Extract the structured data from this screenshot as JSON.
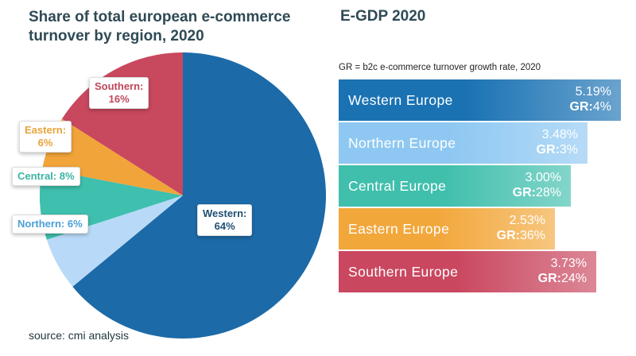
{
  "chart_data": [
    {
      "type": "pie",
      "title": "Share of total european e-commerce turnover by region, 2020",
      "unit": "%",
      "slices": [
        {
          "name": "Western",
          "value": 64,
          "label": "64%",
          "color": "#1c6aa8"
        },
        {
          "name": "Northern",
          "value": 6,
          "label": "6%",
          "color": "#b8daf8"
        },
        {
          "name": "Central",
          "value": 8,
          "label": "8%",
          "color": "#3fbfad"
        },
        {
          "name": "Eastern",
          "value": 6,
          "label": "6%",
          "color": "#f1a43a"
        },
        {
          "name": "Southern",
          "value": 16,
          "label": "16%",
          "color": "#c8485e"
        }
      ]
    },
    {
      "type": "bar",
      "title": "E-GDP 2020",
      "subtitle": "GR = b2c e-commerce turnover growth rate, 2020",
      "categories": [
        "Western Europe",
        "Northern Europe",
        "Central Europe",
        "Eastern Europe",
        "Southern Europe"
      ],
      "values": [
        5.19,
        3.48,
        3.0,
        2.53,
        3.73
      ],
      "value_labels": [
        "5.19%",
        "3.48%",
        "3.00%",
        "2.53%",
        "3.73%"
      ],
      "growth_rate_labels": [
        "4%",
        "3%",
        "28%",
        "36%",
        "24%"
      ],
      "gr_prefix": "GR:",
      "colors": [
        "#1a72b3",
        "#8ec8f2",
        "#40bfad",
        "#f2a73b",
        "#c9475f"
      ]
    }
  ],
  "footer": {
    "source": "source: cmi analysis"
  }
}
